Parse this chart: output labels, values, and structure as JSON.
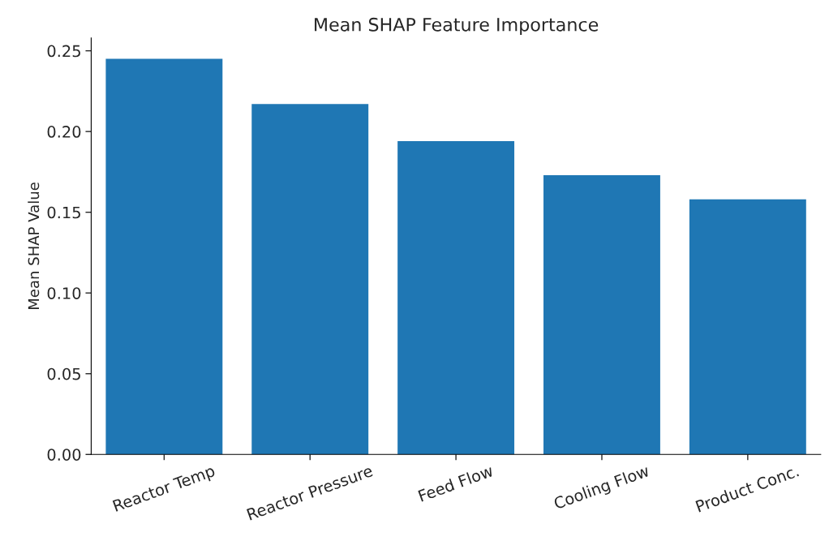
{
  "chart_data": {
    "type": "bar",
    "title": "Mean SHAP Feature Importance",
    "ylabel": "Mean SHAP Value",
    "categories": [
      "Reactor Temp",
      "Reactor Pressure",
      "Feed Flow",
      "Cooling Flow",
      "Product Conc."
    ],
    "values": [
      0.245,
      0.217,
      0.194,
      0.173,
      0.158
    ],
    "color": "#1f77b4",
    "ylim": [
      0,
      0.258
    ],
    "yticks": [
      {
        "value": 0,
        "label": "0.00"
      },
      {
        "value": 0.05,
        "label": "0.05"
      },
      {
        "value": 0.1,
        "label": "0.10"
      },
      {
        "value": 0.15,
        "label": "0.15"
      },
      {
        "value": 0.2,
        "label": "0.20"
      },
      {
        "value": 0.25,
        "label": "0.25"
      }
    ],
    "grid": false,
    "legend": false
  }
}
